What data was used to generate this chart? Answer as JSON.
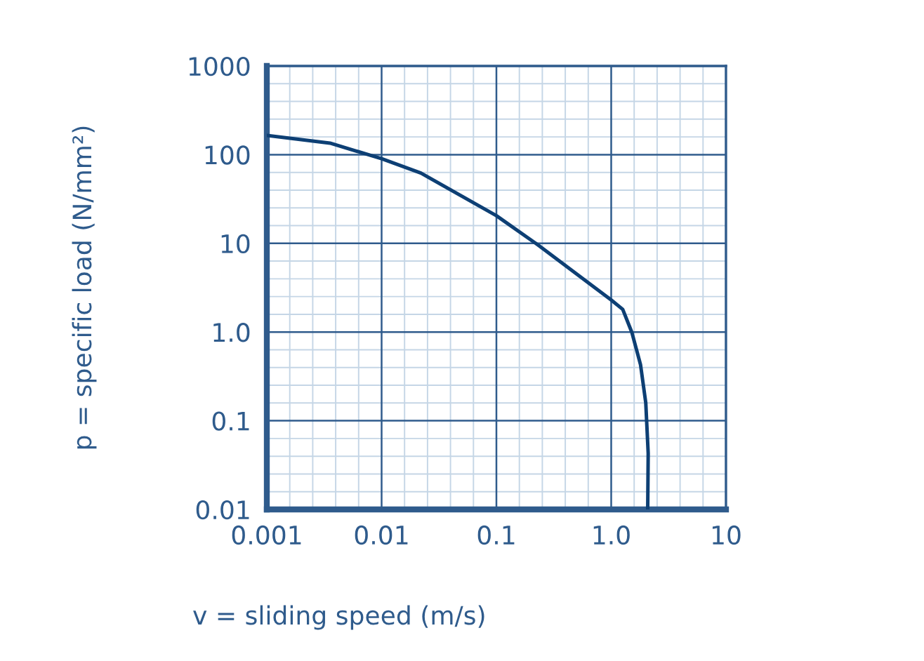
{
  "chart_data": {
    "type": "line",
    "xlabel": "v = sliding speed (m/s)",
    "ylabel": "p = specific load (N/mm²)",
    "log": "xy",
    "x": [
      0.001,
      0.00355,
      0.01,
      0.022,
      0.1,
      0.23,
      1.0,
      1.26,
      1.51,
      1.8,
      2.0,
      2.1,
      2.08
    ],
    "series": [
      {
        "color": "#0d3f74",
        "values": [
          165,
          135,
          90,
          62,
          20.5,
          9.6,
          2.3,
          1.8,
          1.0,
          0.43,
          0.16,
          0.043,
          0.01
        ]
      }
    ],
    "xlim": [
      0.001,
      10
    ],
    "ylim": [
      0.01,
      1000
    ],
    "xticks": [
      0.001,
      0.01,
      0.1,
      {
        "value": 1,
        "label": "1.0"
      },
      10
    ],
    "yticks": [
      0.01,
      0.1,
      {
        "value": 1,
        "label": "1.0"
      },
      10,
      100,
      1000
    ],
    "grid": true,
    "marker": "none",
    "line_style": "solid"
  }
}
